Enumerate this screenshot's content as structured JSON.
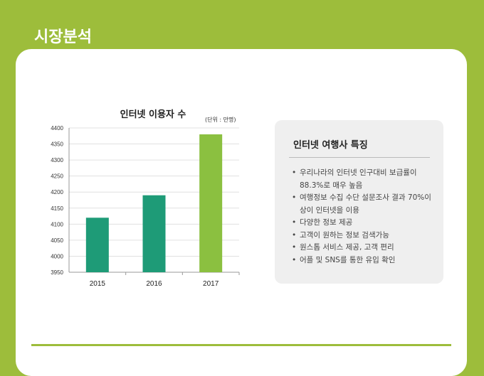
{
  "page_title": "시장분석",
  "colors": {
    "accent": "#9dbd3b",
    "bar_dark": "#1e9b77",
    "bar_light": "#8bc040"
  },
  "chart_data": {
    "type": "bar",
    "title": "인터넷 이용자 수",
    "unit_label": "(단위 : 만명)",
    "categories": [
      "2015",
      "2016",
      "2017"
    ],
    "values": [
      4120,
      4190,
      4380
    ],
    "ylim": [
      3950,
      4400
    ],
    "yticks": [
      3950,
      4000,
      4050,
      4100,
      4150,
      4200,
      4250,
      4300,
      4350,
      4400
    ],
    "grid": true
  },
  "features": {
    "title": "인터넷 여행사 특징",
    "items": [
      "우리나라의 인터넷 인구대비 보급률이 88.3%로 매우 높음",
      "여행정보 수집 수단 설문조사 결과 70%이상이 인터넷을 이용",
      "다양한 정보 제공",
      "고객이 원하는 정보 검색가능",
      "원스톱 서비스 제공, 고객 편리",
      "어플 및 SNS를 통한 유입 확인"
    ]
  }
}
